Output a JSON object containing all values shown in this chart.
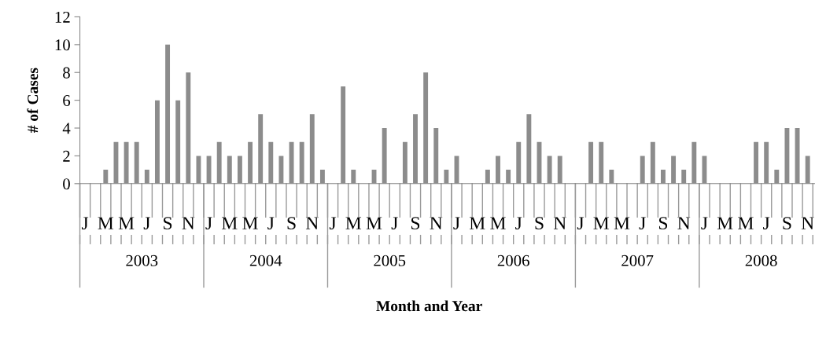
{
  "chart_data": {
    "type": "bar",
    "xlabel": "Month and Year",
    "ylabel": "# of Cases",
    "categories": [
      "J",
      null,
      "M",
      null,
      "M",
      null,
      "J",
      null,
      "S",
      null,
      "N",
      null,
      "J",
      null,
      "M",
      null,
      "M",
      null,
      "J",
      null,
      "S",
      null,
      "N",
      null,
      "J",
      null,
      "M",
      null,
      "M",
      null,
      "J",
      null,
      "S",
      null,
      "N",
      null,
      "J",
      null,
      "M",
      null,
      "M",
      null,
      "J",
      null,
      "S",
      null,
      "N",
      null,
      "J",
      null,
      "M",
      null,
      "M",
      null,
      "J",
      null,
      "S",
      null,
      "N",
      null,
      "J",
      null,
      "M",
      null,
      "M",
      null,
      "J",
      null,
      "S",
      null,
      "N"
    ],
    "values": [
      0,
      0,
      1,
      3,
      3,
      3,
      1,
      6,
      10,
      6,
      8,
      2,
      2,
      3,
      2,
      2,
      3,
      5,
      3,
      2,
      3,
      3,
      5,
      1,
      0,
      7,
      1,
      0,
      1,
      4,
      0,
      3,
      5,
      8,
      4,
      1,
      2,
      0,
      0,
      1,
      2,
      1,
      3,
      5,
      3,
      2,
      2,
      0,
      0,
      3,
      3,
      1,
      0,
      0,
      2,
      3,
      1,
      2,
      1,
      3,
      2,
      0,
      0,
      0,
      0,
      3,
      3,
      1,
      4,
      4,
      2
    ],
    "color": "#8c8c8c",
    "ylim": [
      0,
      12
    ],
    "yticks": [
      0,
      2,
      4,
      6,
      8,
      10,
      12
    ],
    "grid": false,
    "legend": false,
    "annotations": [
      "2003",
      "2004",
      "2005",
      "2006",
      "2007",
      "2008"
    ]
  }
}
